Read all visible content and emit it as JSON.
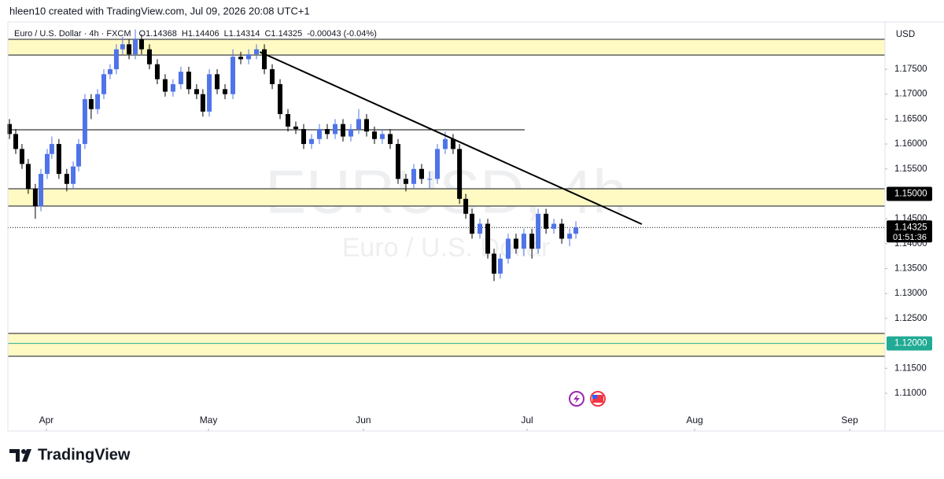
{
  "header": {
    "credit": "hleen10 created with TradingView.com, Jul 09, 2026 20:08 UTC+1",
    "symbol": "Euro / U.S. Dollar · 4h · FXCM",
    "ohlc": [
      "O1.14368",
      "H1.14406",
      "L1.14314",
      "C1.14325",
      "-0.00043 (-0.04%)"
    ],
    "currency": "USD",
    "watermark": [
      "EURUSD, 4h",
      "Euro / U.S. Dollar"
    ],
    "brand": "TradingView"
  },
  "chart_data": {
    "type": "candlestick",
    "up_color": "#4f73e8",
    "down_color": "#000000",
    "grid": false,
    "xlim": [
      3.76,
      9.225
    ],
    "ylim": [
      1.10684,
      1.18447
    ],
    "xticks": [
      {
        "value": 4,
        "label": "Apr"
      },
      {
        "value": 5.01,
        "label": "May"
      },
      {
        "value": 5.975,
        "label": "Jun"
      },
      {
        "value": 6.995,
        "label": "Jul"
      },
      {
        "value": 8.039,
        "label": "Aug"
      },
      {
        "value": 9.005,
        "label": "Sep"
      }
    ],
    "yticks": [
      {
        "value": 1.11,
        "label": "1.11000"
      },
      {
        "value": 1.115,
        "label": "1.11500"
      },
      {
        "value": 1.125,
        "label": "1.12500"
      },
      {
        "value": 1.13,
        "label": "1.13000"
      },
      {
        "value": 1.135,
        "label": "1.13500"
      },
      {
        "value": 1.14,
        "label": "1.14000"
      },
      {
        "value": 1.145,
        "label": "1.14500"
      },
      {
        "value": 1.155,
        "label": "1.15500"
      },
      {
        "value": 1.16,
        "label": "1.16000"
      },
      {
        "value": 1.165,
        "label": "1.16500"
      },
      {
        "value": 1.17,
        "label": "1.17000"
      },
      {
        "value": 1.175,
        "label": "1.17500"
      }
    ],
    "x": [
      3.77,
      3.809,
      3.848,
      3.887,
      3.931,
      3.966,
      4.005,
      4.034,
      4.078,
      4.127,
      4.167,
      4.201,
      4.24,
      4.279,
      4.319,
      4.358,
      4.397,
      4.436,
      4.475,
      4.515,
      4.554,
      4.593,
      4.642,
      4.691,
      4.74,
      4.789,
      4.838,
      4.887,
      4.936,
      4.975,
      5.015,
      5.064,
      5.113,
      5.162,
      5.211,
      5.26,
      5.309,
      5.358,
      5.407,
      5.456,
      5.505,
      5.554,
      5.603,
      5.652,
      5.701,
      5.75,
      5.799,
      5.848,
      5.897,
      5.946,
      5.995,
      6.044,
      6.093,
      6.142,
      6.191,
      6.24,
      6.289,
      6.338,
      6.387,
      6.436,
      6.485,
      6.534,
      6.574,
      6.613,
      6.652,
      6.701,
      6.75,
      6.789,
      6.828,
      6.877,
      6.926,
      6.975,
      7.025,
      7.064,
      7.113,
      7.162,
      7.211,
      7.26,
      7.299
    ],
    "open": [
      1.164,
      1.162,
      1.159,
      1.156,
      1.151,
      1.1475,
      1.154,
      1.158,
      1.16,
      1.154,
      1.152,
      1.1555,
      1.16,
      1.169,
      1.167,
      1.17,
      1.174,
      1.175,
      1.179,
      1.18,
      1.178,
      1.181,
      1.179,
      1.176,
      1.173,
      1.1705,
      1.172,
      1.1745,
      1.171,
      1.17,
      1.1665,
      1.174,
      1.171,
      1.17,
      1.1775,
      1.177,
      1.178,
      1.179,
      1.175,
      1.172,
      1.166,
      1.1635,
      1.163,
      1.16,
      1.161,
      1.163,
      1.162,
      1.164,
      1.1615,
      1.163,
      1.165,
      1.1625,
      1.161,
      1.162,
      1.16,
      1.153,
      1.152,
      1.155,
      1.153,
      1.153,
      1.159,
      1.161,
      1.159,
      1.149,
      1.146,
      1.142,
      1.144,
      1.138,
      1.134,
      1.137,
      1.141,
      1.139,
      1.142,
      1.139,
      1.146,
      1.143,
      1.144,
      1.141,
      1.142
    ],
    "high": [
      1.165,
      1.163,
      1.16,
      1.157,
      1.152,
      1.155,
      1.159,
      1.1615,
      1.161,
      1.155,
      1.1565,
      1.161,
      1.17,
      1.17,
      1.171,
      1.175,
      1.176,
      1.18,
      1.1815,
      1.181,
      1.183,
      1.182,
      1.18,
      1.177,
      1.174,
      1.173,
      1.1755,
      1.1755,
      1.172,
      1.171,
      1.175,
      1.175,
      1.172,
      1.179,
      1.1785,
      1.179,
      1.18,
      1.18,
      1.176,
      1.173,
      1.167,
      1.1645,
      1.164,
      1.162,
      1.164,
      1.164,
      1.165,
      1.165,
      1.164,
      1.167,
      1.166,
      1.1635,
      1.163,
      1.163,
      1.161,
      1.154,
      1.156,
      1.156,
      1.1545,
      1.16,
      1.1625,
      1.162,
      1.16,
      1.15,
      1.147,
      1.145,
      1.145,
      1.139,
      1.138,
      1.142,
      1.142,
      1.143,
      1.143,
      1.147,
      1.147,
      1.145,
      1.145,
      1.143,
      1.1445
    ],
    "low": [
      1.161,
      1.158,
      1.155,
      1.15,
      1.145,
      1.1465,
      1.153,
      1.157,
      1.153,
      1.1505,
      1.151,
      1.1545,
      1.159,
      1.165,
      1.166,
      1.169,
      1.173,
      1.174,
      1.178,
      1.177,
      1.177,
      1.178,
      1.175,
      1.172,
      1.1695,
      1.1695,
      1.171,
      1.17,
      1.169,
      1.1655,
      1.1655,
      1.17,
      1.169,
      1.169,
      1.176,
      1.176,
      1.177,
      1.174,
      1.171,
      1.165,
      1.1625,
      1.162,
      1.159,
      1.159,
      1.16,
      1.161,
      1.161,
      1.1605,
      1.1605,
      1.162,
      1.1615,
      1.16,
      1.16,
      1.159,
      1.152,
      1.1505,
      1.151,
      1.152,
      1.151,
      1.152,
      1.158,
      1.158,
      1.148,
      1.145,
      1.141,
      1.141,
      1.137,
      1.1325,
      1.133,
      1.136,
      1.138,
      1.1375,
      1.137,
      1.138,
      1.142,
      1.142,
      1.14,
      1.1395,
      1.141
    ],
    "close": [
      1.162,
      1.159,
      1.156,
      1.151,
      1.1475,
      1.154,
      1.158,
      1.16,
      1.154,
      1.152,
      1.1555,
      1.16,
      1.169,
      1.167,
      1.17,
      1.174,
      1.175,
      1.179,
      1.18,
      1.178,
      1.181,
      1.179,
      1.176,
      1.173,
      1.1705,
      1.172,
      1.1745,
      1.171,
      1.17,
      1.1665,
      1.174,
      1.171,
      1.17,
      1.1775,
      1.177,
      1.178,
      1.179,
      1.175,
      1.172,
      1.166,
      1.1635,
      1.163,
      1.16,
      1.161,
      1.163,
      1.162,
      1.164,
      1.1615,
      1.163,
      1.165,
      1.1625,
      1.161,
      1.162,
      1.16,
      1.153,
      1.152,
      1.155,
      1.153,
      1.153,
      1.159,
      1.161,
      1.159,
      1.149,
      1.146,
      1.142,
      1.144,
      1.138,
      1.134,
      1.137,
      1.141,
      1.139,
      1.142,
      1.139,
      1.146,
      1.143,
      1.144,
      1.141,
      1.142,
      1.14325
    ],
    "zones": [
      {
        "from": 1.181,
        "to": 1.17784,
        "color": "#fff9c4"
      },
      {
        "from": 1.15102,
        "to": 1.14755,
        "color": "#fff9c4"
      },
      {
        "from": 1.122,
        "to": 1.11742,
        "color": "#fff9c4"
      }
    ],
    "hlines": [
      {
        "price": 1.16285,
        "x_end": 6.98,
        "color": "#000000"
      },
      {
        "price": 1.12,
        "color": "#22ab94"
      }
    ],
    "trendline": {
      "x": [
        5.33,
        7.71
      ],
      "y": [
        1.17847,
        1.14392
      ],
      "color": "#000000"
    },
    "last_price": {
      "value": 1.14325,
      "label": "1.14325",
      "countdown": "01:51:36",
      "color": "#000000"
    },
    "price_labels": [
      {
        "value": 1.15,
        "label": "1.15000",
        "color": "#000000"
      },
      {
        "value": 1.12,
        "label": "1.12000",
        "color": "#22ab94"
      }
    ]
  }
}
